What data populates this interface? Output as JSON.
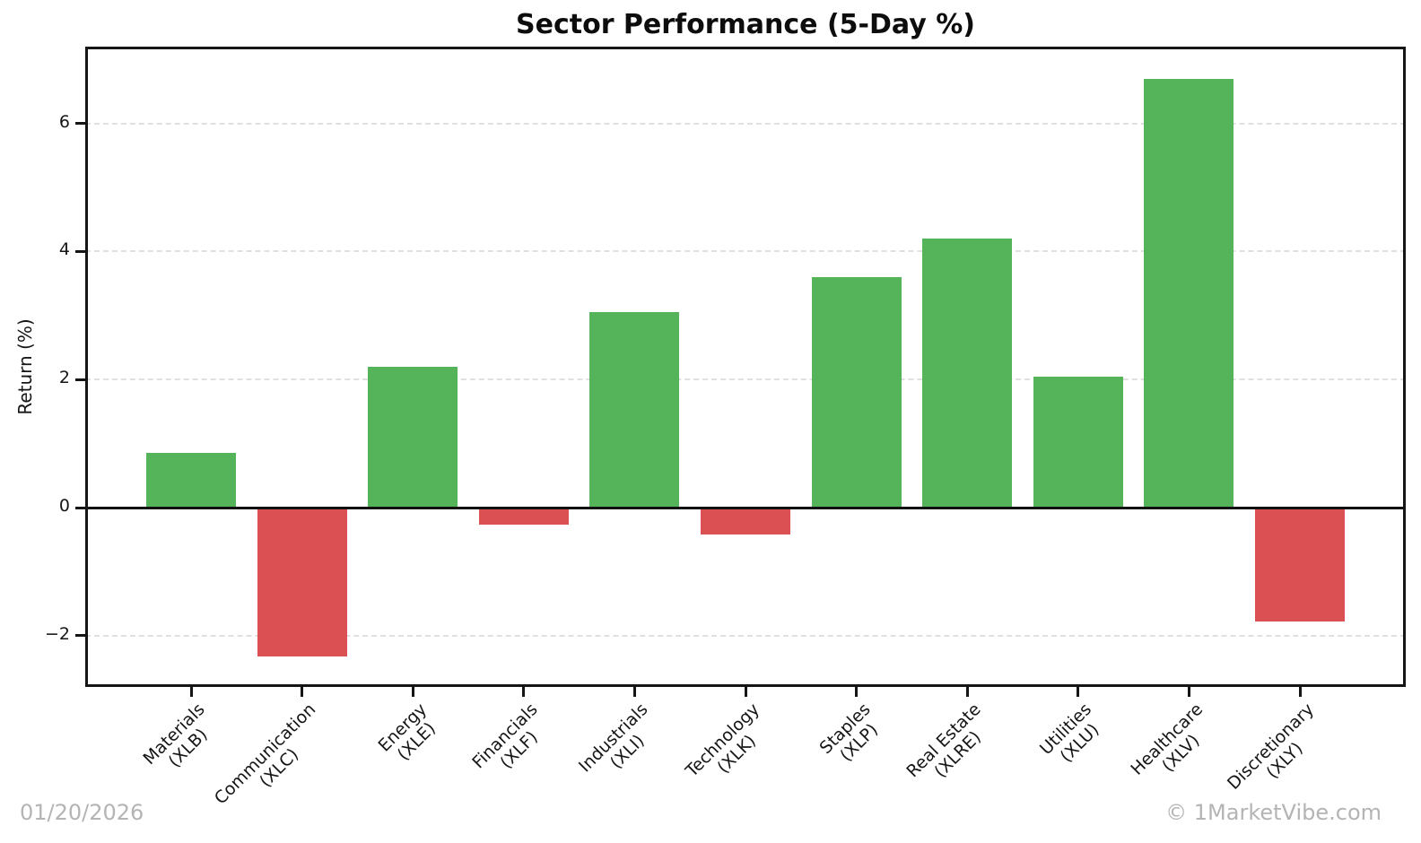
{
  "footer": {
    "date": "01/20/2026",
    "watermark": "© 1MarketVibe.com"
  },
  "chart_data": {
    "type": "bar",
    "title": "Sector Performance (5-Day %)",
    "xlabel": "",
    "ylabel": "Return (%)",
    "categories": [
      "Materials\n(XLB)",
      "Communication\n(XLC)",
      "Energy\n(XLE)",
      "Financials\n(XLF)",
      "Industrials\n(XLI)",
      "Technology\n(XLK)",
      "Staples\n(XLP)",
      "Real Estate\n(XLRE)",
      "Utilities\n(XLU)",
      "Healthcare\n(XLV)",
      "Discretionary\n(XLY)"
    ],
    "tickers": [
      "XLB",
      "XLC",
      "XLE",
      "XLF",
      "XLI",
      "XLK",
      "XLP",
      "XLRE",
      "XLU",
      "XLV",
      "XLY"
    ],
    "values": [
      0.85,
      -2.3,
      2.2,
      -0.25,
      3.05,
      -0.4,
      3.6,
      4.2,
      2.05,
      6.7,
      -1.75
    ],
    "color_rule": "green if value >= 0 else red",
    "positive_color": "#55b45a",
    "negative_color": "#db5153",
    "yticks": [
      -2,
      0,
      2,
      4,
      6
    ],
    "ylim": [
      -2.8,
      7.2
    ],
    "grid": {
      "axis": "y",
      "style": "dashed",
      "color": "#e0e0e0"
    },
    "zero_line_color": "#111111",
    "legend_position": "none"
  }
}
